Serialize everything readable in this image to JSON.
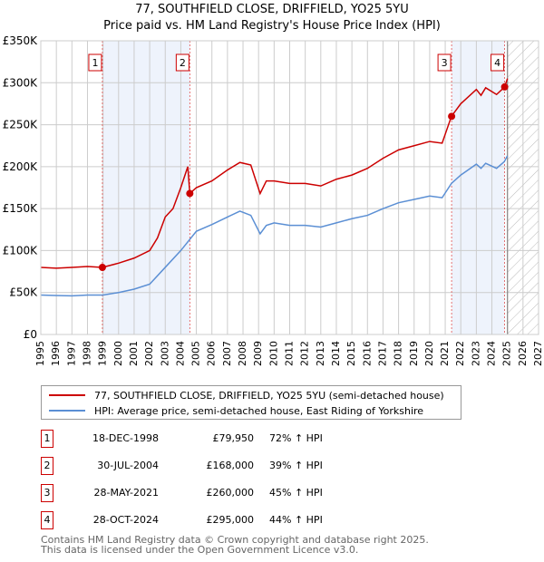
{
  "chart_data": {
    "type": "line",
    "title": "77, SOUTHFIELD CLOSE, DRIFFIELD, YO25 5YU",
    "subtitle": "Price paid vs. HM Land Registry's House Price Index (HPI)",
    "xlim": [
      1995,
      2027
    ],
    "ylim": [
      0,
      350000
    ],
    "x_ticks": [
      "1995",
      "1996",
      "1997",
      "1998",
      "1999",
      "2000",
      "2001",
      "2002",
      "2003",
      "2004",
      "2005",
      "2006",
      "2007",
      "2008",
      "2009",
      "2010",
      "2011",
      "2012",
      "2013",
      "2014",
      "2015",
      "2016",
      "2017",
      "2018",
      "2019",
      "2020",
      "2021",
      "2022",
      "2023",
      "2024",
      "2025",
      "2026",
      "2027"
    ],
    "y_ticks": [
      {
        "v": 0,
        "label": "£0"
      },
      {
        "v": 50000,
        "label": "£50K"
      },
      {
        "v": 100000,
        "label": "£100K"
      },
      {
        "v": 150000,
        "label": "£150K"
      },
      {
        "v": 200000,
        "label": "£200K"
      },
      {
        "v": 250000,
        "label": "£250K"
      },
      {
        "v": 300000,
        "label": "£300K"
      },
      {
        "v": 350000,
        "label": "£350K"
      }
    ],
    "grid": true,
    "series": [
      {
        "name": "77, SOUTHFIELD CLOSE, DRIFFIELD, YO25 5YU (semi-detached house)",
        "color": "#cc0000",
        "x": [
          1995,
          1996,
          1997,
          1998,
          1998.96,
          2000,
          2001,
          2002,
          2002.5,
          2003,
          2003.5,
          2004,
          2004.45,
          2004.58,
          2005,
          2006,
          2007,
          2007.8,
          2008.5,
          2009.1,
          2009.5,
          2010,
          2011,
          2012,
          2013,
          2014,
          2015,
          2016,
          2017,
          2018,
          2019,
          2020,
          2020.8,
          2021.4,
          2022,
          2023,
          2023.3,
          2023.6,
          2024.3,
          2024.82,
          2025.0
        ],
        "y": [
          80000,
          79000,
          80000,
          81000,
          79950,
          85000,
          91000,
          100000,
          115000,
          140000,
          150000,
          175000,
          200000,
          168000,
          175000,
          183000,
          196000,
          205000,
          202000,
          168000,
          183000,
          183000,
          180000,
          180000,
          177000,
          185000,
          190000,
          198000,
          210000,
          220000,
          225000,
          230000,
          228000,
          260000,
          275000,
          292000,
          285000,
          294000,
          286000,
          295000,
          305000
        ]
      },
      {
        "name": "HPI: Average price, semi-detached house, East Riding of Yorkshire",
        "color": "#5b8fd4",
        "x": [
          1995,
          1996,
          1997,
          1998,
          1999,
          2000,
          2001,
          2002,
          2003,
          2004,
          2005,
          2006,
          2007,
          2007.8,
          2008.5,
          2009.1,
          2009.5,
          2010,
          2011,
          2012,
          2013,
          2014,
          2015,
          2016,
          2017,
          2018,
          2019,
          2020,
          2020.8,
          2021.4,
          2022,
          2023,
          2023.3,
          2023.6,
          2024.3,
          2024.8,
          2025.0
        ],
        "y": [
          47000,
          46500,
          46000,
          47000,
          47000,
          50000,
          54000,
          60000,
          80000,
          100000,
          123000,
          131000,
          140000,
          147000,
          142000,
          120000,
          130000,
          133000,
          130000,
          130000,
          128000,
          133000,
          138000,
          142000,
          150000,
          157000,
          161000,
          165000,
          163000,
          180000,
          190000,
          203000,
          198000,
          204000,
          198000,
          206000,
          213000
        ]
      }
    ],
    "sales": [
      {
        "id": "1",
        "x": 1998.96,
        "price": 79950
      },
      {
        "id": "2",
        "x": 2004.58,
        "price": 168000
      },
      {
        "id": "3",
        "x": 2021.41,
        "price": 260000
      },
      {
        "id": "4",
        "x": 2024.82,
        "price": 295000
      }
    ],
    "shaded_ranges": [
      [
        1998.96,
        2004.58
      ],
      [
        2021.41,
        2024.82
      ]
    ],
    "forecast_hatch_from": 2025.0
  },
  "legend": {
    "red": "77, SOUTHFIELD CLOSE, DRIFFIELD, YO25 5YU (semi-detached house)",
    "blue": "HPI: Average price, semi-detached house, East Riding of Yorkshire"
  },
  "table": [
    {
      "num": "1",
      "date": "18-DEC-1998",
      "price": "£79,950",
      "hpi": "72% ↑ HPI"
    },
    {
      "num": "2",
      "date": "30-JUL-2004",
      "price": "£168,000",
      "hpi": "39% ↑ HPI"
    },
    {
      "num": "3",
      "date": "28-MAY-2021",
      "price": "£260,000",
      "hpi": "45% ↑ HPI"
    },
    {
      "num": "4",
      "date": "28-OCT-2024",
      "price": "£295,000",
      "hpi": "44% ↑ HPI"
    }
  ],
  "footer": {
    "line1": "Contains HM Land Registry data © Crown copyright and database right 2025.",
    "line2": "This data is licensed under the Open Government Licence v3.0."
  }
}
